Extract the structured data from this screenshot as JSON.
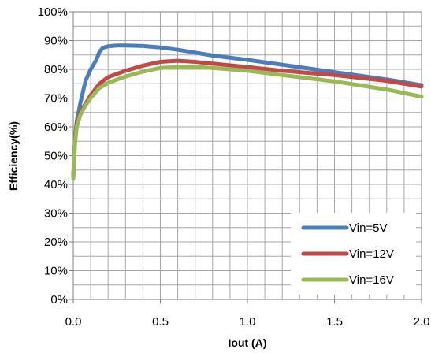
{
  "chart_data": {
    "type": "line",
    "xlabel": "Iout (A)",
    "ylabel": "Efficiency(%)",
    "xlim": [
      0,
      2.0
    ],
    "ylim": [
      0,
      100
    ],
    "x_ticks": [
      "0.0",
      "0.5",
      "1.0",
      "1.5",
      "2.0"
    ],
    "y_ticks": [
      "0%",
      "10%",
      "20%",
      "30%",
      "40%",
      "50%",
      "60%",
      "70%",
      "80%",
      "90%",
      "100%"
    ],
    "grid": true,
    "legend_position": "bottom-right",
    "series": [
      {
        "name": "Vin=5V",
        "color": "#4a7ebb",
        "x": [
          0.0,
          0.01,
          0.02,
          0.04,
          0.07,
          0.1,
          0.13,
          0.15,
          0.17,
          0.2,
          0.25,
          0.3,
          0.4,
          0.5,
          0.6,
          0.7,
          0.8,
          1.0,
          1.2,
          1.5,
          1.8,
          2.0
        ],
        "y": [
          42,
          56,
          62,
          68,
          76,
          80,
          83,
          86,
          87.5,
          88,
          88.3,
          88.3,
          88.1,
          87.6,
          86.8,
          85.8,
          84.8,
          83.3,
          81.6,
          79,
          76.5,
          74.5
        ]
      },
      {
        "name": "Vin=12V",
        "color": "#be4b48",
        "x": [
          0.0,
          0.01,
          0.02,
          0.04,
          0.07,
          0.1,
          0.15,
          0.2,
          0.3,
          0.4,
          0.5,
          0.6,
          0.7,
          0.8,
          1.0,
          1.2,
          1.5,
          1.8,
          2.0
        ],
        "y": [
          43,
          55,
          61,
          65,
          68,
          71,
          75,
          77.3,
          79.5,
          81.3,
          82.6,
          83,
          82.6,
          82,
          80.8,
          79.5,
          78,
          76,
          74
        ]
      },
      {
        "name": "Vin=16V",
        "color": "#98b954",
        "x": [
          0.0,
          0.01,
          0.02,
          0.04,
          0.07,
          0.1,
          0.15,
          0.2,
          0.3,
          0.4,
          0.5,
          0.6,
          0.7,
          0.8,
          1.0,
          1.2,
          1.5,
          1.8,
          2.0
        ],
        "y": [
          42,
          54,
          60,
          64,
          67.5,
          70,
          73.5,
          75.3,
          77.5,
          79.2,
          80.5,
          80.8,
          80.8,
          80.5,
          79.5,
          78,
          75.8,
          73,
          70.5
        ]
      }
    ]
  }
}
